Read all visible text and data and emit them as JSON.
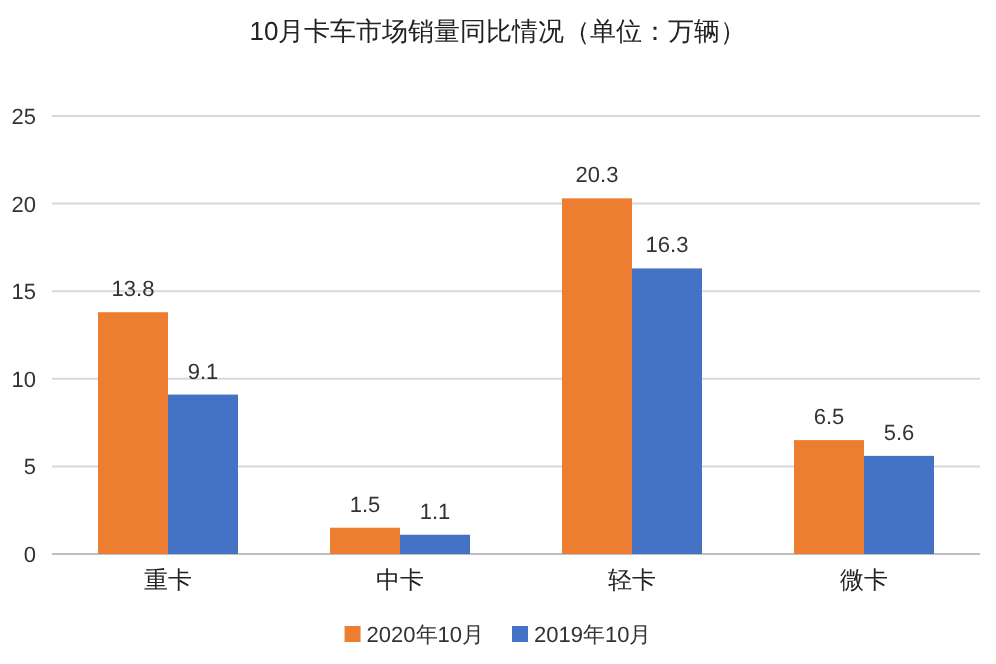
{
  "chart_data": {
    "type": "bar",
    "title": "10月卡车市场销量同比情况（单位：万辆）",
    "categories": [
      "重卡",
      "中卡",
      "轻卡",
      "微卡"
    ],
    "series": [
      {
        "name": "2020年10月",
        "color": "#ed7d31",
        "values": [
          13.8,
          1.5,
          20.3,
          6.5
        ]
      },
      {
        "name": "2019年10月",
        "color": "#4472c4",
        "values": [
          9.1,
          1.1,
          16.3,
          5.6
        ]
      }
    ],
    "ylim": [
      0,
      25
    ],
    "yticks": [
      0,
      5,
      10,
      15,
      20,
      25
    ],
    "grid": "y",
    "legend": "bottom",
    "data_labels": true
  }
}
